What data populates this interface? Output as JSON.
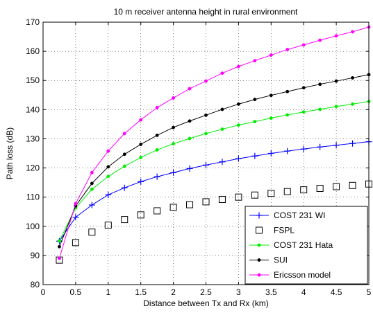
{
  "chart_data": {
    "type": "line",
    "title": "10 m receiver antenna height in rural environment",
    "xlabel": "Distance between Tx and Rx (km)",
    "ylabel": "Path loss (dB)",
    "xlim": [
      0,
      5
    ],
    "ylim": [
      80,
      170
    ],
    "xticks": [
      0,
      0.5,
      1,
      1.5,
      2,
      2.5,
      3,
      3.5,
      4,
      4.5,
      5
    ],
    "xtick_labels": [
      "0",
      "0.5",
      "1",
      "1.5",
      "2",
      "2.5",
      "3",
      "3.5",
      "4",
      "4.5",
      "5"
    ],
    "yticks": [
      80,
      90,
      100,
      110,
      120,
      130,
      140,
      150,
      160,
      170
    ],
    "ytick_labels": [
      "80",
      "90",
      "100",
      "110",
      "120",
      "130",
      "140",
      "150",
      "160",
      "170"
    ],
    "grid": true,
    "legend_position": "bottom-right",
    "x": [
      0.25,
      0.5,
      0.75,
      1.0,
      1.25,
      1.5,
      1.75,
      2.0,
      2.25,
      2.5,
      2.75,
      3.0,
      3.25,
      3.5,
      3.75,
      4.0,
      4.25,
      4.5,
      4.75,
      5.0
    ],
    "series": [
      {
        "name": "COST 231 WI",
        "color": "#0000ff",
        "marker": "plus",
        "line": true,
        "values": [
          94.9,
          103.1,
          107.3,
          110.8,
          113.2,
          115.3,
          117.0,
          118.4,
          119.8,
          121.0,
          122.1,
          123.2,
          124.1,
          125.0,
          125.8,
          126.5,
          127.2,
          127.8,
          128.4,
          129.0
        ]
      },
      {
        "name": "FSPL",
        "color": "#000000",
        "marker": "square",
        "line": false,
        "values": [
          88.4,
          94.4,
          98.0,
          100.4,
          102.3,
          103.9,
          105.3,
          106.5,
          107.4,
          108.4,
          109.2,
          110.0,
          110.7,
          111.3,
          111.9,
          112.5,
          113.0,
          113.6,
          114.0,
          114.5
        ]
      },
      {
        "name": "COST 231 Hata",
        "color": "#00ee00",
        "marker": "dot",
        "line": true,
        "values": [
          95.0,
          106.3,
          112.7,
          117.1,
          120.6,
          123.6,
          126.2,
          128.3,
          130.1,
          131.8,
          133.3,
          134.7,
          135.9,
          137.1,
          138.2,
          139.2,
          140.1,
          141.1,
          141.9,
          142.8
        ]
      },
      {
        "name": "SUI",
        "color": "#000000",
        "marker": "dot",
        "line": true,
        "values": [
          93.0,
          107.0,
          114.7,
          120.4,
          124.7,
          128.1,
          131.2,
          133.9,
          136.1,
          138.1,
          140.1,
          141.9,
          143.5,
          144.9,
          146.2,
          147.5,
          148.7,
          149.8,
          150.9,
          152.0
        ]
      },
      {
        "name": "Ericsson model",
        "color": "#ff00ff",
        "marker": "dot",
        "line": true,
        "values": [
          89.0,
          107.8,
          118.4,
          125.8,
          131.8,
          136.5,
          140.7,
          144.0,
          147.2,
          149.8,
          152.5,
          154.8,
          156.8,
          158.7,
          160.6,
          162.2,
          163.8,
          165.3,
          166.7,
          168.3
        ]
      }
    ]
  }
}
